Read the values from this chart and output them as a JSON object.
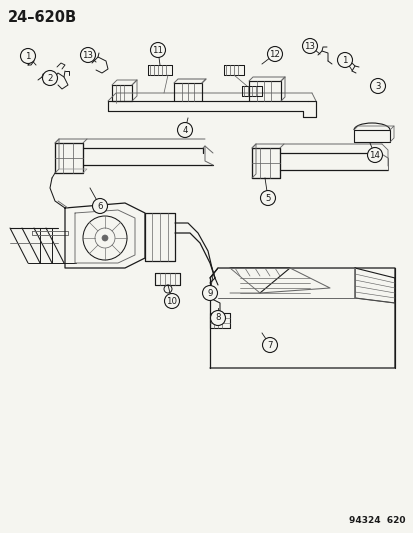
{
  "title": "24–620B",
  "watermark": "94324  620",
  "bg_color": "#f5f5f0",
  "fig_width": 4.14,
  "fig_height": 5.33,
  "dpi": 100,
  "title_fontsize": 10.5,
  "watermark_fontsize": 6.5
}
